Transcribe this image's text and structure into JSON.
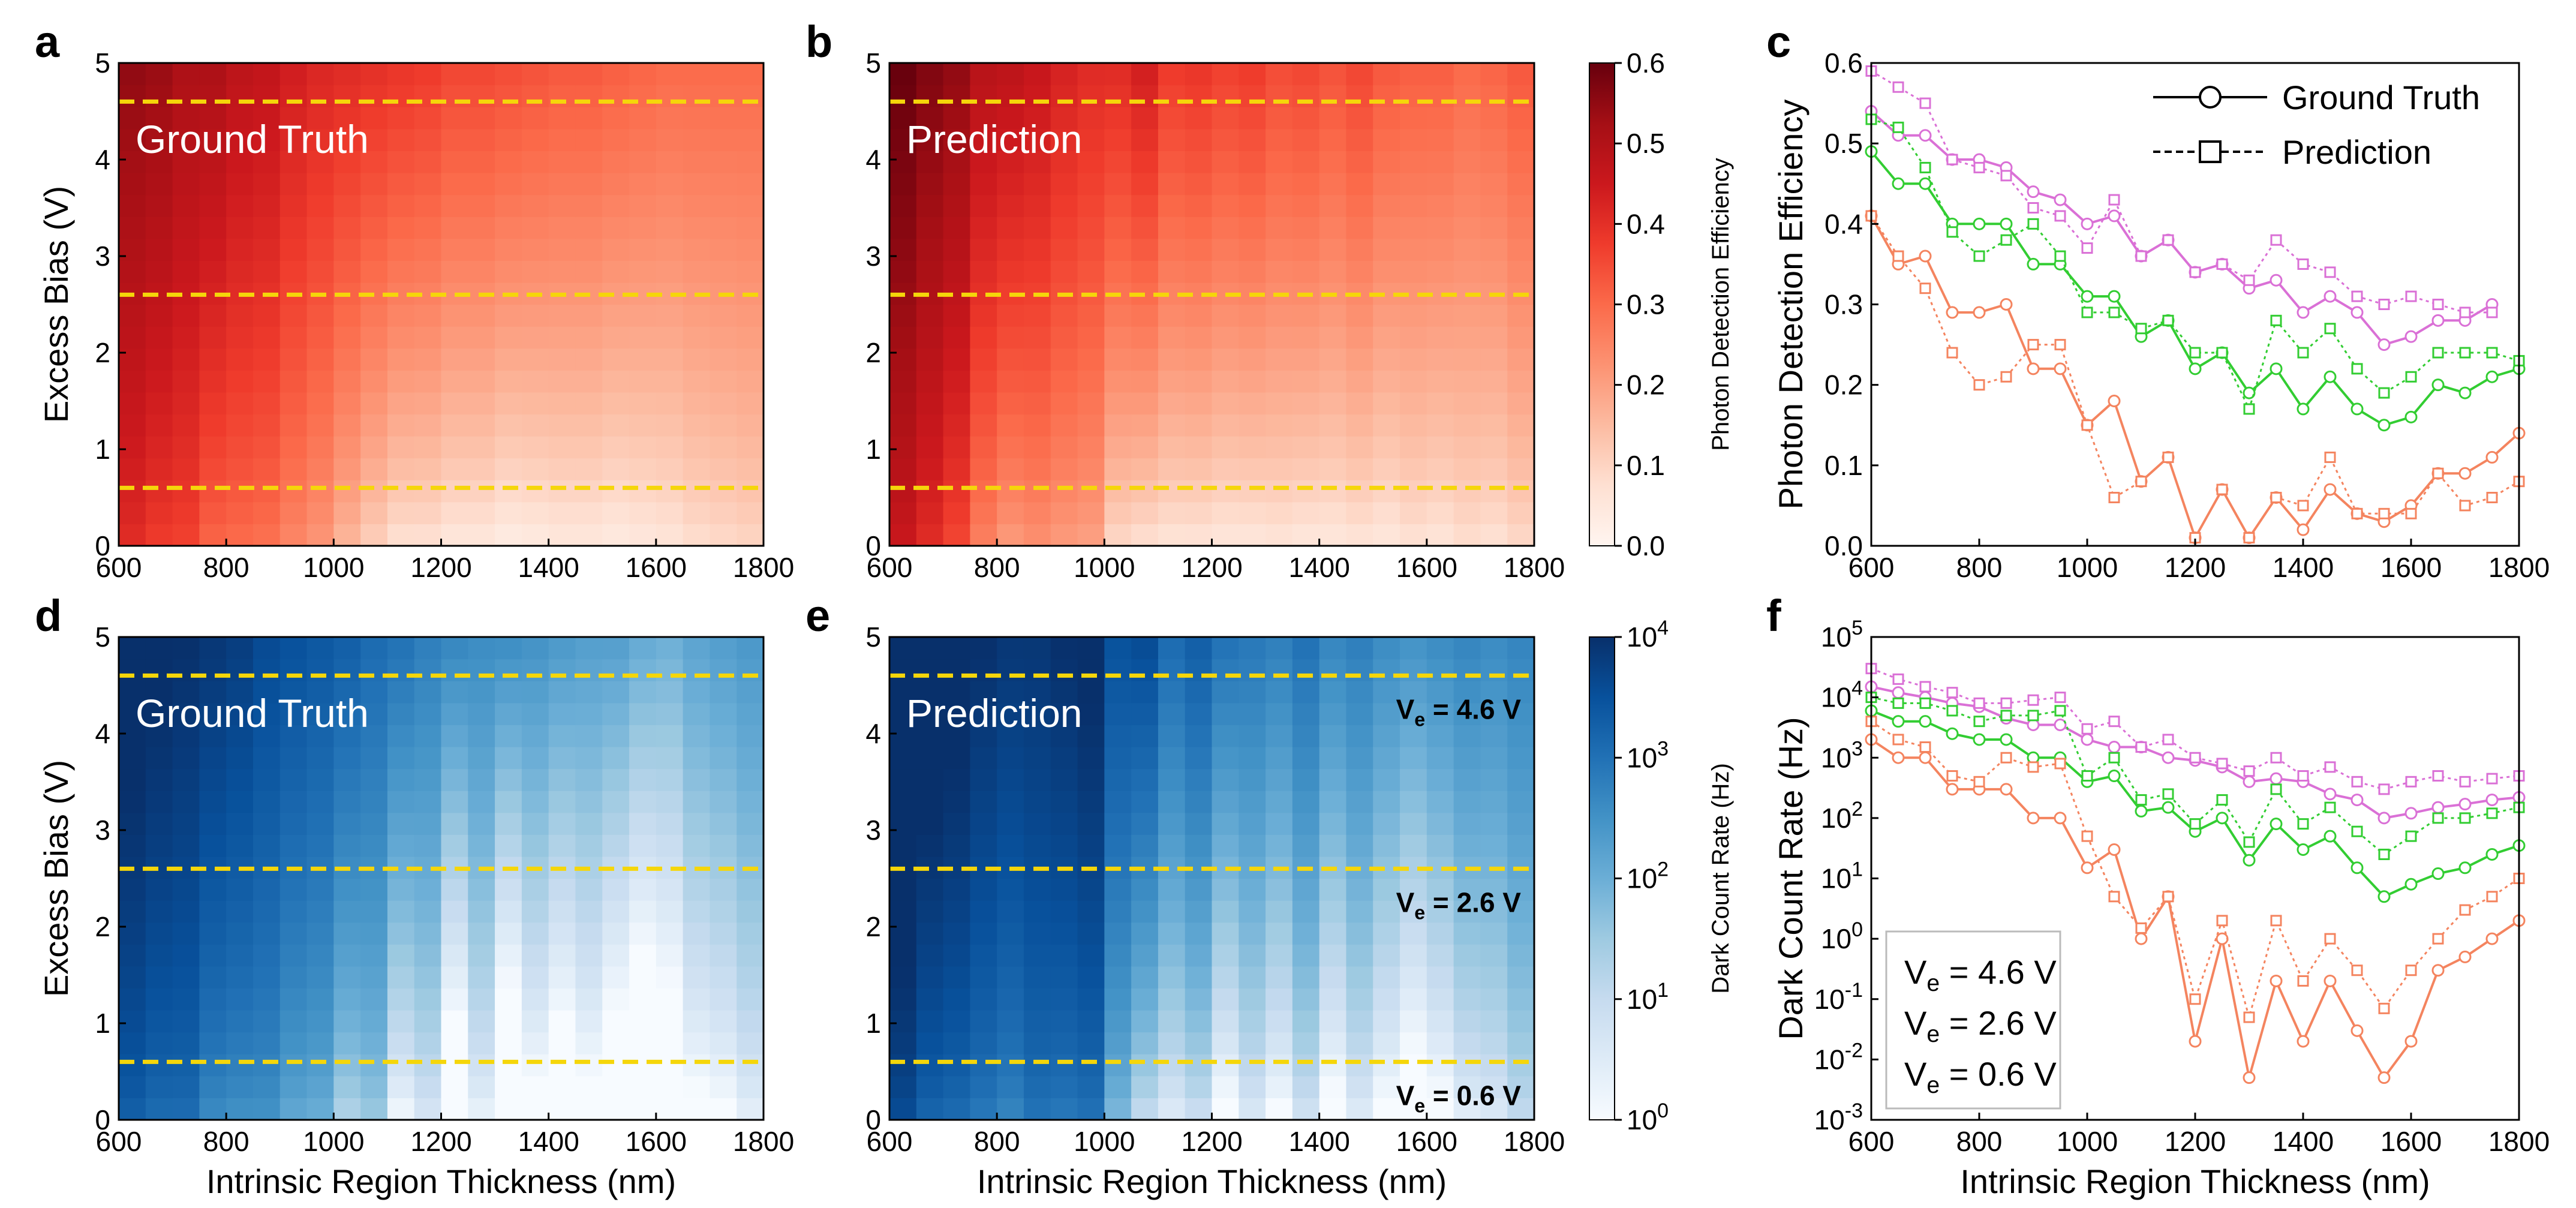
{
  "figure": {
    "panels": {
      "a": {
        "label": "a",
        "inset": "Ground Truth",
        "ylabel": "Excess Bias (V)",
        "xlabel": ""
      },
      "b": {
        "label": "b",
        "inset": "Prediction",
        "ylabel": "",
        "xlabel": ""
      },
      "c": {
        "label": "c",
        "ylabel": "Photon Detection Efficiency",
        "xlabel": ""
      },
      "d": {
        "label": "d",
        "inset": "Ground Truth",
        "ylabel": "Excess Bias (V)",
        "xlabel": "Intrinsic Region Thickness (nm)"
      },
      "e": {
        "label": "e",
        "inset": "Prediction",
        "ylabel": "",
        "xlabel": "Intrinsic Region Thickness (nm)"
      },
      "f": {
        "label": "f",
        "ylabel": "Dark Count Rate (Hz)",
        "xlabel": "Intrinsic Region Thickness (nm)"
      }
    },
    "colorbars": {
      "pde": {
        "label": "Photon Detection Efficiency",
        "ticks": [
          "0.0",
          "0.1",
          "0.2",
          "0.3",
          "0.4",
          "0.5",
          "0.6"
        ]
      },
      "dcr": {
        "label": "Dark Count Rate (Hz)",
        "ticks": [
          "10^0",
          "10^1",
          "10^2",
          "10^3",
          "10^4"
        ]
      }
    },
    "x_ticks": [
      "600",
      "800",
      "1000",
      "1200",
      "1400",
      "1600",
      "1800"
    ],
    "v_ticks": [
      "0",
      "1",
      "2",
      "3",
      "4",
      "5"
    ],
    "pde_ticks": [
      "0.0",
      "0.1",
      "0.2",
      "0.3",
      "0.4",
      "0.5",
      "0.6"
    ],
    "dcr_ticks": [
      "10^-3",
      "10^-2",
      "10^-1",
      "10^0",
      "10^1",
      "10^2",
      "10^3",
      "10^4",
      "10^5"
    ],
    "legend_c": {
      "gt": "Ground Truth",
      "pred": "Prediction"
    },
    "legend_f": [
      {
        "text": "V_e = 4.6 V",
        "color": "#da70d6"
      },
      {
        "text": "V_e = 2.6 V",
        "color": "#32cd32"
      },
      {
        "text": "V_e = 0.6 V",
        "color": "#f4845f"
      }
    ],
    "bias_markers_e": [
      "V_e = 4.6 V",
      "V_e = 2.6 V",
      "V_e = 0.6 V"
    ],
    "colors": {
      "ve46": "#da70d6",
      "ve26": "#32cd32",
      "ve06": "#f4845f",
      "dashed_line": "#f5d60a",
      "inset_text": "#ffffff"
    }
  },
  "chart_data": [
    {
      "type": "heatmap",
      "panel": "a",
      "name": "PDE Ground Truth",
      "x_range": [
        600,
        1800
      ],
      "y_range": [
        0,
        5
      ],
      "color_range": [
        0,
        0.6
      ],
      "colormap": "Reds",
      "columns": 24,
      "rows": 22,
      "top_profile": [
        0.55,
        0.54,
        0.51,
        0.51,
        0.48,
        0.47,
        0.44,
        0.42,
        0.41,
        0.4,
        0.39,
        0.38,
        0.36,
        0.36,
        0.35,
        0.34,
        0.33,
        0.33,
        0.32,
        0.31,
        0.3,
        0.3,
        0.3,
        0.3
      ],
      "bottom_profile": [
        0.4,
        0.37,
        0.36,
        0.3,
        0.29,
        0.28,
        0.24,
        0.21,
        0.15,
        0.1,
        0.06,
        0.06,
        0.04,
        0.04,
        0.02,
        0.03,
        0.04,
        0.04,
        0.03,
        0.04,
        0.05,
        0.07,
        0.08,
        0.09
      ],
      "dashed_lines_V": [
        4.6,
        2.6,
        0.6
      ]
    },
    {
      "type": "heatmap",
      "panel": "b",
      "name": "PDE Prediction",
      "x_range": [
        600,
        1800
      ],
      "y_range": [
        0,
        5
      ],
      "color_range": [
        0,
        0.6
      ],
      "colormap": "Reds",
      "columns": 24,
      "rows": 22,
      "top_profile": [
        0.6,
        0.57,
        0.55,
        0.49,
        0.48,
        0.46,
        0.43,
        0.41,
        0.41,
        0.44,
        0.38,
        0.39,
        0.37,
        0.38,
        0.35,
        0.36,
        0.34,
        0.36,
        0.33,
        0.32,
        0.32,
        0.3,
        0.31,
        0.33
      ],
      "bottom_profile": [
        0.45,
        0.4,
        0.35,
        0.25,
        0.2,
        0.22,
        0.2,
        0.19,
        0.08,
        0.06,
        0.05,
        0.05,
        0.04,
        0.04,
        0.05,
        0.04,
        0.04,
        0.05,
        0.04,
        0.06,
        0.05,
        0.07,
        0.06,
        0.08
      ],
      "dashed_lines_V": [
        4.6,
        2.6,
        0.6
      ]
    },
    {
      "type": "line",
      "panel": "c",
      "x": [
        600,
        650,
        700,
        750,
        800,
        850,
        900,
        950,
        1000,
        1050,
        1100,
        1150,
        1200,
        1250,
        1300,
        1350,
        1400,
        1450,
        1500,
        1550,
        1600,
        1650,
        1700,
        1750,
        1800
      ],
      "xlabel": "",
      "ylabel": "Photon Detection Efficiency",
      "xlim": [
        600,
        1800
      ],
      "ylim": [
        0,
        0.6
      ],
      "series": [
        {
          "name": "V_e = 4.6 V Ground Truth",
          "color": "#da70d6",
          "marker": "circle",
          "dash": "solid",
          "values": [
            0.54,
            0.51,
            0.51,
            0.48,
            0.48,
            0.47,
            0.44,
            0.43,
            0.4,
            0.41,
            0.36,
            0.38,
            0.34,
            0.35,
            0.32,
            0.33,
            0.29,
            0.31,
            0.29,
            0.25,
            0.26,
            0.28,
            0.28,
            0.3,
            null
          ]
        },
        {
          "name": "V_e = 4.6 V Prediction",
          "color": "#da70d6",
          "marker": "square",
          "dash": "dotted",
          "values": [
            0.59,
            0.57,
            0.55,
            0.48,
            0.47,
            0.46,
            0.42,
            0.41,
            0.37,
            0.43,
            0.36,
            0.38,
            0.34,
            0.35,
            0.33,
            0.38,
            0.35,
            0.34,
            0.31,
            0.3,
            0.31,
            0.3,
            0.29,
            0.29,
            null
          ]
        },
        {
          "name": "V_e = 2.6 V Ground Truth",
          "color": "#32cd32",
          "marker": "circle",
          "dash": "solid",
          "values": [
            0.49,
            0.45,
            0.45,
            0.4,
            0.4,
            0.4,
            0.35,
            0.35,
            0.31,
            0.31,
            0.26,
            0.28,
            0.22,
            0.24,
            0.19,
            0.22,
            0.17,
            0.21,
            0.17,
            0.15,
            0.16,
            0.2,
            0.19,
            0.21,
            0.22
          ]
        },
        {
          "name": "V_e = 2.6 V Prediction",
          "color": "#32cd32",
          "marker": "square",
          "dash": "dotted",
          "values": [
            0.53,
            0.52,
            0.47,
            0.39,
            0.36,
            0.38,
            0.4,
            0.36,
            0.29,
            0.29,
            0.27,
            0.28,
            0.24,
            0.24,
            0.17,
            0.28,
            0.24,
            0.27,
            0.22,
            0.19,
            0.21,
            0.24,
            0.24,
            0.24,
            0.23
          ]
        },
        {
          "name": "V_e = 0.6 V Ground Truth",
          "color": "#f4845f",
          "marker": "circle",
          "dash": "solid",
          "values": [
            0.41,
            0.35,
            0.36,
            0.29,
            0.29,
            0.3,
            0.22,
            0.22,
            0.15,
            0.18,
            0.08,
            0.11,
            0.01,
            0.07,
            0.01,
            0.06,
            0.02,
            0.07,
            0.04,
            0.03,
            0.05,
            0.09,
            0.09,
            0.11,
            0.14
          ]
        },
        {
          "name": "V_e = 0.6 V Prediction",
          "color": "#f4845f",
          "marker": "square",
          "dash": "dotted",
          "values": [
            0.41,
            0.36,
            0.32,
            0.24,
            0.2,
            0.21,
            0.25,
            0.25,
            0.15,
            0.06,
            0.08,
            0.11,
            0.01,
            0.07,
            0.01,
            0.06,
            0.05,
            0.11,
            0.04,
            0.04,
            0.04,
            0.09,
            0.05,
            0.06,
            0.08
          ]
        }
      ]
    },
    {
      "type": "heatmap",
      "panel": "d",
      "name": "DCR Ground Truth",
      "x_range": [
        600,
        1800
      ],
      "y_range": [
        0,
        5
      ],
      "color_range_log10": [
        0,
        4
      ],
      "colormap": "Blues",
      "columns": 24,
      "rows": 22,
      "top_profile_log10": [
        4.2,
        4.1,
        4.0,
        3.9,
        3.8,
        3.6,
        3.5,
        3.4,
        3.3,
        3.1,
        3.0,
        2.8,
        2.7,
        2.6,
        2.6,
        2.5,
        2.4,
        2.3,
        2.3,
        2.1,
        2.0,
        2.2,
        2.3,
        2.4
      ],
      "bottom_profile_log10": [
        3.2,
        3.0,
        3.0,
        2.5,
        2.4,
        2.4,
        2.0,
        1.9,
        1.1,
        1.4,
        -0.1,
        0.5,
        -1.7,
        0.1,
        -2.2,
        -0.7,
        -1.5,
        -0.7,
        -1.6,
        -2.3,
        -1.7,
        -0.5,
        -0.3,
        0.2
      ],
      "dashed_lines_V": [
        4.6,
        2.6,
        0.6
      ]
    },
    {
      "type": "heatmap",
      "panel": "e",
      "name": "DCR Prediction",
      "x_range": [
        600,
        1800
      ],
      "y_range": [
        0,
        5
      ],
      "color_range_log10": [
        0,
        4
      ],
      "colormap": "Blues",
      "columns": 24,
      "rows": 22,
      "top_profile_log10": [
        4.5,
        4.3,
        4.2,
        4.0,
        3.9,
        3.9,
        4.0,
        4.1,
        3.5,
        3.6,
        3.1,
        3.3,
        3.0,
        2.9,
        2.8,
        3.0,
        2.7,
        2.8,
        2.6,
        2.5,
        2.6,
        2.7,
        2.6,
        2.7
      ],
      "bottom_profile_log10": [
        3.5,
        3.1,
        3.0,
        2.8,
        2.6,
        2.9,
        2.8,
        2.9,
        1.7,
        0.8,
        0.3,
        0.7,
        -0.5,
        0.4,
        -0.3,
        0.6,
        -0.6,
        0.3,
        -0.4,
        -1.1,
        -0.5,
        0.2,
        0.4,
        0.9
      ],
      "dashed_lines_V": [
        4.6,
        2.6,
        0.6
      ]
    },
    {
      "type": "line",
      "panel": "f",
      "y_scale": "log",
      "x": [
        600,
        650,
        700,
        750,
        800,
        850,
        900,
        950,
        1000,
        1050,
        1100,
        1150,
        1200,
        1250,
        1300,
        1350,
        1400,
        1450,
        1500,
        1550,
        1600,
        1650,
        1700,
        1750,
        1800
      ],
      "xlabel": "Intrinsic Region Thickness (nm)",
      "ylabel": "Dark Count Rate (Hz)",
      "xlim": [
        600,
        1800
      ],
      "ylim": [
        0.001,
        100000
      ],
      "series": [
        {
          "name": "V_e = 4.6 V Ground Truth",
          "color": "#da70d6",
          "marker": "circle",
          "dash": "solid",
          "values": [
            15000,
            12000,
            10000,
            8000,
            7000,
            4500,
            3500,
            3500,
            2000,
            1500,
            1500,
            1000,
            900,
            700,
            400,
            450,
            400,
            250,
            200,
            100,
            120,
            150,
            170,
            200,
            220
          ]
        },
        {
          "name": "V_e = 4.6 V Prediction",
          "color": "#da70d6",
          "marker": "square",
          "dash": "dotted",
          "values": [
            30000,
            20000,
            15000,
            12000,
            8000,
            8000,
            9000,
            10000,
            3000,
            4000,
            1500,
            2000,
            1000,
            800,
            600,
            1000,
            500,
            700,
            400,
            300,
            400,
            500,
            400,
            450,
            500
          ]
        },
        {
          "name": "V_e = 2.6 V Ground Truth",
          "color": "#32cd32",
          "marker": "circle",
          "dash": "solid",
          "values": [
            6000,
            4000,
            4000,
            2500,
            2000,
            2000,
            1000,
            1000,
            400,
            500,
            130,
            150,
            60,
            100,
            20,
            80,
            30,
            50,
            15,
            5,
            8,
            12,
            15,
            25,
            35
          ]
        },
        {
          "name": "V_e = 2.6 V Prediction",
          "color": "#32cd32",
          "marker": "square",
          "dash": "dotted",
          "values": [
            10000,
            8000,
            8000,
            6000,
            4000,
            5000,
            5000,
            6000,
            500,
            1000,
            200,
            250,
            80,
            200,
            40,
            300,
            80,
            150,
            60,
            25,
            50,
            100,
            100,
            120,
            150
          ]
        },
        {
          "name": "V_e = 0.6 V Ground Truth",
          "color": "#f4845f",
          "marker": "circle",
          "dash": "solid",
          "values": [
            2000,
            1000,
            1000,
            300,
            300,
            300,
            100,
            100,
            15,
            30,
            1,
            5,
            0.02,
            1,
            0.005,
            0.2,
            0.02,
            0.2,
            0.03,
            0.005,
            0.02,
            0.3,
            0.5,
            1,
            2
          ]
        },
        {
          "name": "V_e = 0.6 V Prediction",
          "color": "#f4845f",
          "marker": "square",
          "dash": "dotted",
          "values": [
            4000,
            2000,
            1500,
            500,
            400,
            1000,
            700,
            800,
            50,
            5,
            1.5,
            5,
            0.1,
            2,
            0.05,
            2,
            0.2,
            1,
            0.3,
            0.07,
            0.3,
            1,
            3,
            5,
            10
          ]
        }
      ]
    }
  ]
}
